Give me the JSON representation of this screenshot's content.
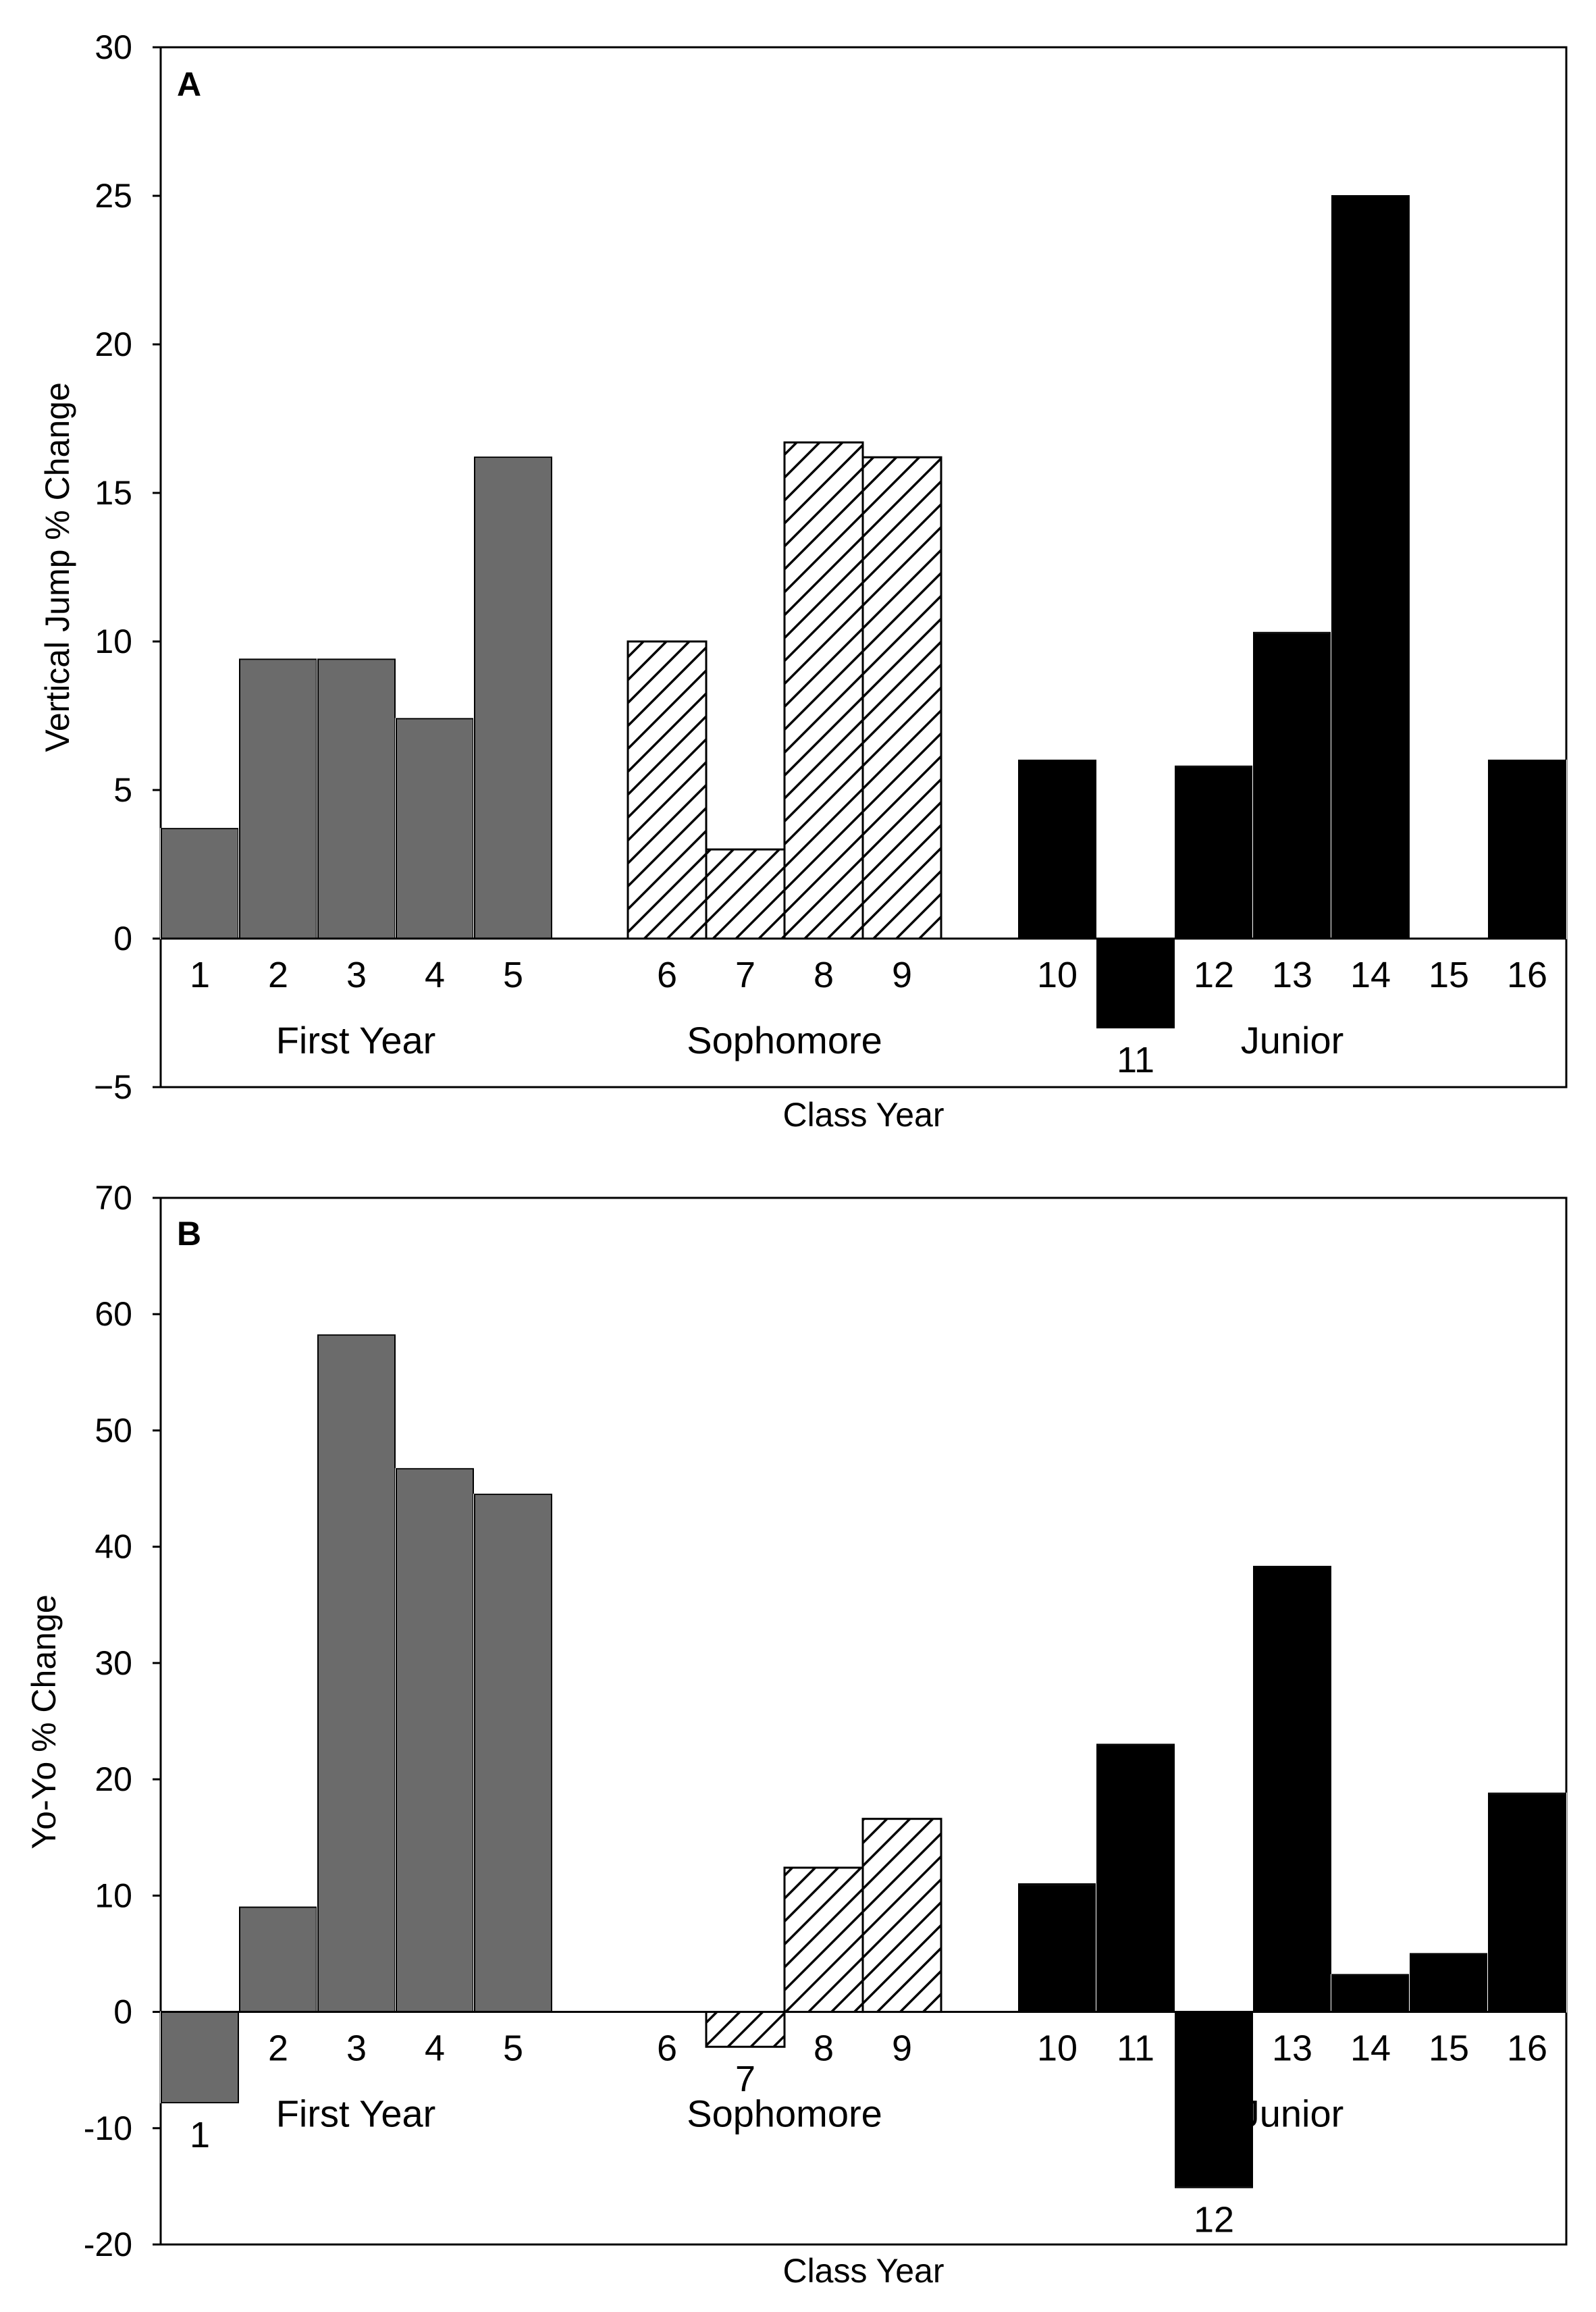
{
  "chart_data": [
    {
      "type": "bar",
      "panel": "A",
      "xlabel": "Class Year",
      "ylabel": "Vertical Jump % Change",
      "ylim": [
        -5,
        30
      ],
      "yticks": [
        -5,
        0,
        5,
        10,
        15,
        20,
        25,
        30
      ],
      "ytick_labels": [
        "−5",
        "0",
        "5",
        "10",
        "15",
        "20",
        "25",
        "30"
      ],
      "categories": [
        "1",
        "2",
        "3",
        "4",
        "5",
        "6",
        "7",
        "8",
        "9",
        "10",
        "11",
        "12",
        "13",
        "14",
        "15",
        "16"
      ],
      "values": [
        3.7,
        9.4,
        9.4,
        7.4,
        16.2,
        10.0,
        3.0,
        16.7,
        16.2,
        6.0,
        -3.0,
        5.8,
        10.3,
        25.0,
        0,
        6.0
      ],
      "groups": [
        "First Year",
        "First Year",
        "First Year",
        "First Year",
        "First Year",
        "Sophomore",
        "Sophomore",
        "Sophomore",
        "Sophomore",
        "Junior",
        "Junior",
        "Junior",
        "Junior",
        "Junior",
        "Junior",
        "Junior"
      ],
      "group_labels": [
        "First Year",
        "Sophomore",
        "Junior"
      ],
      "legend": "none"
    },
    {
      "type": "bar",
      "panel": "B",
      "xlabel": "Class Year",
      "ylabel": "Yo-Yo % Change",
      "ylim": [
        -20,
        70
      ],
      "yticks": [
        -20,
        -10,
        0,
        10,
        20,
        30,
        40,
        50,
        60,
        70
      ],
      "ytick_labels": [
        "-20",
        "-10",
        "0",
        "10",
        "20",
        "30",
        "40",
        "50",
        "60",
        "70"
      ],
      "categories": [
        "1",
        "2",
        "3",
        "4",
        "5",
        "6",
        "7",
        "8",
        "9",
        "10",
        "11",
        "12",
        "13",
        "14",
        "15",
        "16"
      ],
      "values": [
        -7.8,
        9.0,
        58.2,
        46.7,
        44.5,
        0,
        -3.0,
        12.4,
        16.6,
        11.0,
        23.0,
        -15.1,
        38.3,
        3.2,
        5.0,
        18.8
      ],
      "groups": [
        "First Year",
        "First Year",
        "First Year",
        "First Year",
        "First Year",
        "Sophomore",
        "Sophomore",
        "Sophomore",
        "Sophomore",
        "Junior",
        "Junior",
        "Junior",
        "Junior",
        "Junior",
        "Junior",
        "Junior"
      ],
      "group_labels": [
        "First Year",
        "Sophomore",
        "Junior"
      ],
      "legend": "none"
    }
  ],
  "styles": {
    "First Year": {
      "fill": "#6b6b6b",
      "pattern": "solid"
    },
    "Sophomore": {
      "fill": "#ffffff",
      "pattern": "diagonal-hatch",
      "stroke": "#000000"
    },
    "Junior": {
      "fill": "#000000",
      "pattern": "solid"
    },
    "edge": "#000000",
    "axis": "#000000"
  }
}
